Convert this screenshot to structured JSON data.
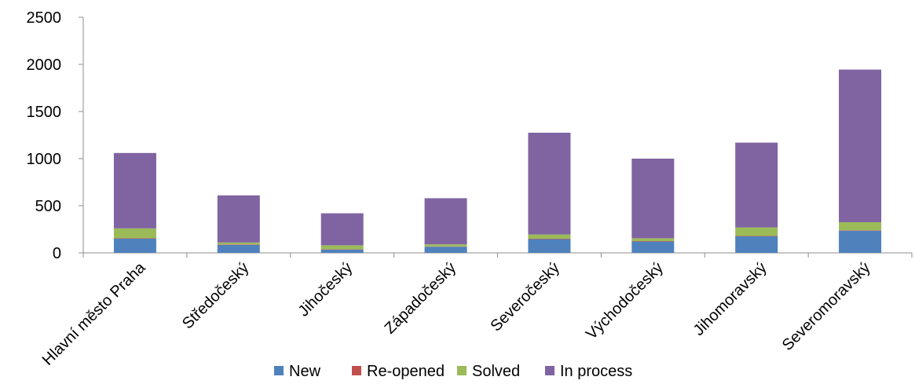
{
  "chart_data": {
    "type": "bar",
    "stacked": true,
    "categories": [
      "Hlavní město Praha",
      "Středočeský",
      "Jihočeský",
      "Západočeský",
      "Severočeský",
      "Východočeský",
      "Jihomoravský",
      "Severomoravský"
    ],
    "series": [
      {
        "name": "New",
        "color": "#4f81bd",
        "values": [
          150,
          85,
          35,
          65,
          145,
          120,
          175,
          235
        ]
      },
      {
        "name": "Re-opened",
        "color": "#c0504d",
        "values": [
          5,
          5,
          3,
          3,
          5,
          5,
          5,
          5
        ]
      },
      {
        "name": "Solved",
        "color": "#9bbb59",
        "values": [
          105,
          20,
          42,
          22,
          45,
          30,
          90,
          85
        ]
      },
      {
        "name": "In process",
        "color": "#8064a2",
        "values": [
          800,
          500,
          340,
          490,
          1080,
          845,
          900,
          1620
        ]
      }
    ],
    "y_ticks": [
      "0",
      "500",
      "1000",
      "1500",
      "2000",
      "2500"
    ],
    "ylim": [
      0,
      2500
    ],
    "title": "",
    "xlabel": "",
    "ylabel": "",
    "grid": false,
    "legend_position": "bottom"
  }
}
